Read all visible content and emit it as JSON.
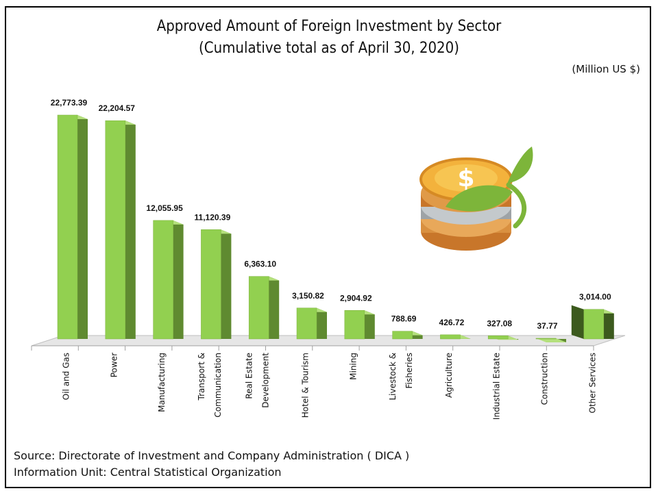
{
  "chart_data": {
    "type": "bar",
    "title": "Approved Amount of Foreign Investment by Sector",
    "subtitle": "(Cumulative total as of April 30, 2020)",
    "unit": "(Million US $)",
    "xlabel": "",
    "ylabel": "",
    "ylim": [
      0,
      24000
    ],
    "categories": [
      [
        "Oil and Gas"
      ],
      [
        "Power"
      ],
      [
        "Manufacturing"
      ],
      [
        "Transport &",
        "Communication"
      ],
      [
        "Real Estate",
        "Development"
      ],
      [
        "Hotel & Tourism"
      ],
      [
        "Mining"
      ],
      [
        "Livestock &",
        "Fisheries"
      ],
      [
        "Agriculture"
      ],
      [
        "Industrial Estate"
      ],
      [
        "Construction"
      ],
      [
        "Other Services"
      ]
    ],
    "values": [
      22773.39,
      22204.57,
      12055.95,
      11120.39,
      6363.1,
      3150.82,
      2904.92,
      788.69,
      426.72,
      327.08,
      37.77,
      3014.0
    ],
    "value_labels": [
      "22,773.39",
      "22,204.57",
      "12,055.95",
      "11,120.39",
      "6,363.10",
      "3,150.82",
      "2,904.92",
      "788.69",
      "426.72",
      "327.08",
      "37.77",
      "3,014.00"
    ],
    "colors": {
      "bar_front": "#92d050",
      "bar_side": "#5f8a30",
      "bar_top": "#b4e07c",
      "highlight_side": "#3c5a1e",
      "floor": "#d9d9d9"
    },
    "source_line1": "Source: Directorate of Investment and Company Administration ( DICA )",
    "source_line2": "Information Unit:  Central Statistical Organization",
    "decoration_icon": "coin-stack-with-sprout-icon"
  }
}
